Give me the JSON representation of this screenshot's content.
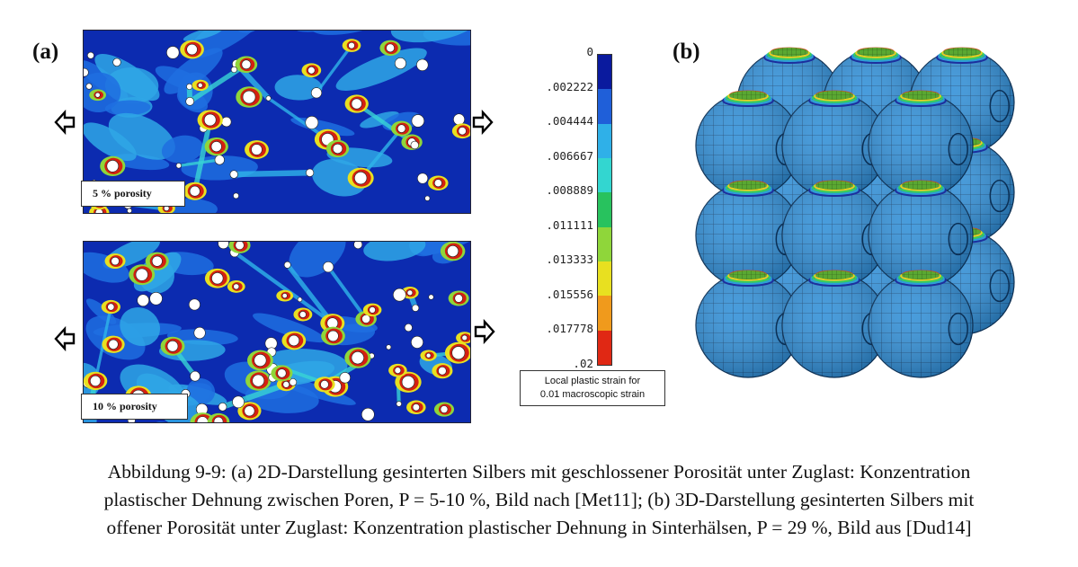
{
  "panels": {
    "a_label": "(a)",
    "b_label": "(b)",
    "top_tag": "5 % porosity",
    "bottom_tag": "10 % porosity"
  },
  "colorbar": {
    "ticks": [
      "0",
      ".002222",
      ".004444",
      ".006667",
      ".008889",
      ".011111",
      ".013333",
      ".015556",
      ".017778",
      ".02"
    ],
    "colors": [
      "#0a1a9e",
      "#1f5fd9",
      "#2fb0e8",
      "#33d6d0",
      "#28c25e",
      "#8fd63a",
      "#e8e020",
      "#f09a1c",
      "#e02814"
    ],
    "note_line1": "Local plastic strain for",
    "note_line2": "0.01 macroscopic strain"
  },
  "caption": {
    "line1": "Abbildung 9-9: (a) 2D-Darstellung gesinterten Silbers mit geschlossener Porosität unter Zuglast: Konzentration",
    "line2": "plastischer Dehnung zwischen Poren, P = 5-10 %, Bild nach [Met11]; (b) 3D-Darstellung gesinterten Silbers mit",
    "line3": "offener Porosität unter Zuglast: Konzentration plastischer Dehnung in Sinterhälsen, P = 29 %, Bild aus [Dud14]"
  }
}
